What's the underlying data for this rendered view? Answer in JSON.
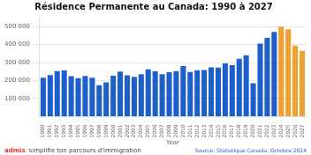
{
  "chart_data": {
    "type": "bar",
    "title": "Résidence Permanente au Canada: 1990 à 2027",
    "xlabel": "Year",
    "categories": [
      "1990",
      "1991",
      "1992",
      "1993",
      "1994",
      "1995",
      "1996",
      "1997",
      "1998",
      "1999",
      "2000",
      "2001",
      "2002",
      "2003",
      "2004",
      "2005",
      "2006",
      "2007",
      "2008",
      "2009",
      "2010",
      "2011",
      "2012",
      "2013",
      "2014",
      "2015",
      "2016",
      "2017",
      "2018",
      "2019",
      "2020",
      "2021",
      "2022",
      "2023",
      "2024",
      "2025",
      "2026",
      "2027"
    ],
    "values": [
      216000,
      230000,
      253000,
      256000,
      224000,
      213000,
      226000,
      216000,
      174000,
      190000,
      227000,
      250000,
      229000,
      221000,
      236000,
      262000,
      251000,
      236000,
      247000,
      253000,
      281000,
      248000,
      258000,
      259000,
      273000,
      272000,
      296000,
      286000,
      321000,
      341000,
      185000,
      406000,
      437000,
      471000,
      500000,
      485000,
      395000,
      365000
    ],
    "colors": [
      "#1f5fcc",
      "#1f5fcc",
      "#1f5fcc",
      "#1f5fcc",
      "#1f5fcc",
      "#1f5fcc",
      "#1f5fcc",
      "#1f5fcc",
      "#1f5fcc",
      "#1f5fcc",
      "#1f5fcc",
      "#1f5fcc",
      "#1f5fcc",
      "#1f5fcc",
      "#1f5fcc",
      "#1f5fcc",
      "#1f5fcc",
      "#1f5fcc",
      "#1f5fcc",
      "#1f5fcc",
      "#1f5fcc",
      "#1f5fcc",
      "#1f5fcc",
      "#1f5fcc",
      "#1f5fcc",
      "#1f5fcc",
      "#1f5fcc",
      "#1f5fcc",
      "#1f5fcc",
      "#1f5fcc",
      "#1f5fcc",
      "#1f5fcc",
      "#1f5fcc",
      "#1f5fcc",
      "#f0a030",
      "#f0a030",
      "#f0a030",
      "#f0a030"
    ],
    "ylim": [
      0,
      560000
    ],
    "yticks": [
      {
        "value": 100000,
        "label": "100 000"
      },
      {
        "value": 200000,
        "label": "200 000"
      },
      {
        "value": 300000,
        "label": "300 000"
      },
      {
        "value": 400000,
        "label": "400 000"
      },
      {
        "value": 500000,
        "label": "500 000"
      }
    ],
    "grid": true,
    "annotations": [
      {
        "text": "admis",
        "color": "#e83030"
      },
      {
        "text": "simplifie ton parcours d'immigration",
        "color": "#444444"
      },
      {
        "text": "Source: Statistique Canada, Octobre 2024",
        "color": "#1f5fcc"
      }
    ]
  }
}
